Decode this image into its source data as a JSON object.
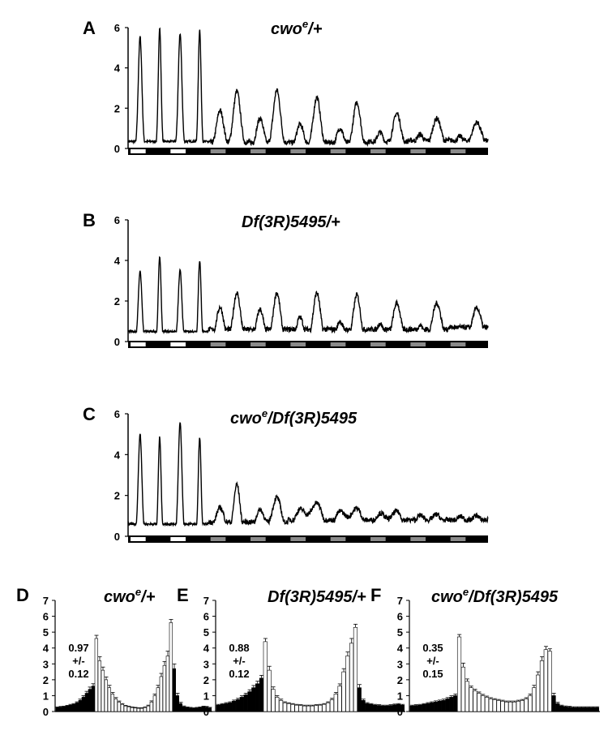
{
  "chart_data": [
    {
      "panel": "A",
      "type": "line",
      "title_main": "cwo",
      "title_sup": "e",
      "title_rest": "/+",
      "ylim": [
        0,
        6
      ],
      "yticks": [
        0,
        2,
        4,
        6
      ],
      "xlim": [
        0,
        9
      ],
      "lightbar": [
        "white",
        "black",
        "white",
        "black",
        "gray",
        "black",
        "gray",
        "black",
        "gray",
        "black",
        "gray",
        "black",
        "gray",
        "black",
        "gray",
        "black",
        "gray",
        "black"
      ],
      "days": [
        {
          "peaks": [
            {
              "t": 0.3,
              "h": 5.55,
              "w": 0.045
            },
            {
              "t": 0.79,
              "h": 6.0,
              "w": 0.035
            }
          ],
          "base": 0.35
        },
        {
          "peaks": [
            {
              "t": 0.3,
              "h": 5.7,
              "w": 0.045
            },
            {
              "t": 0.79,
              "h": 5.9,
              "w": 0.035
            }
          ],
          "base": 0.35
        },
        {
          "peaks": [
            {
              "t": 0.3,
              "h": 1.9,
              "w": 0.09
            },
            {
              "t": 0.72,
              "h": 2.85,
              "w": 0.09
            }
          ],
          "base": 0.3
        },
        {
          "peaks": [
            {
              "t": 0.3,
              "h": 1.5,
              "w": 0.09
            },
            {
              "t": 0.72,
              "h": 2.9,
              "w": 0.09
            }
          ],
          "base": 0.3
        },
        {
          "peaks": [
            {
              "t": 0.3,
              "h": 1.2,
              "w": 0.09
            },
            {
              "t": 0.72,
              "h": 2.55,
              "w": 0.09
            }
          ],
          "base": 0.3
        },
        {
          "peaks": [
            {
              "t": 0.3,
              "h": 1.0,
              "w": 0.09
            },
            {
              "t": 0.72,
              "h": 2.3,
              "w": 0.09
            }
          ],
          "base": 0.3
        },
        {
          "peaks": [
            {
              "t": 0.3,
              "h": 0.8,
              "w": 0.09
            },
            {
              "t": 0.72,
              "h": 1.75,
              "w": 0.1
            }
          ],
          "base": 0.35
        },
        {
          "peaks": [
            {
              "t": 0.3,
              "h": 0.7,
              "w": 0.1
            },
            {
              "t": 0.72,
              "h": 1.5,
              "w": 0.11
            }
          ],
          "base": 0.4
        },
        {
          "peaks": [
            {
              "t": 0.3,
              "h": 0.6,
              "w": 0.1
            },
            {
              "t": 0.72,
              "h": 1.3,
              "w": 0.12
            }
          ],
          "base": 0.4
        }
      ]
    },
    {
      "panel": "B",
      "type": "line",
      "title_main": "Df(3R)5495",
      "title_sup": "",
      "title_rest": "/+",
      "ylim": [
        0,
        6
      ],
      "yticks": [
        0,
        2,
        4,
        6
      ],
      "xlim": [
        0,
        9
      ],
      "lightbar": [
        "white",
        "black",
        "white",
        "black",
        "gray",
        "black",
        "gray",
        "black",
        "gray",
        "black",
        "gray",
        "black",
        "gray",
        "black",
        "gray",
        "black",
        "gray",
        "black"
      ],
      "days": [
        {
          "peaks": [
            {
              "t": 0.3,
              "h": 3.45,
              "w": 0.045
            },
            {
              "t": 0.79,
              "h": 4.2,
              "w": 0.035
            }
          ],
          "base": 0.5
        },
        {
          "peaks": [
            {
              "t": 0.3,
              "h": 3.5,
              "w": 0.045
            },
            {
              "t": 0.79,
              "h": 4.0,
              "w": 0.035
            }
          ],
          "base": 0.5
        },
        {
          "peaks": [
            {
              "t": 0.3,
              "h": 1.7,
              "w": 0.09
            },
            {
              "t": 0.72,
              "h": 2.4,
              "w": 0.09
            }
          ],
          "base": 0.6
        },
        {
          "peaks": [
            {
              "t": 0.3,
              "h": 1.6,
              "w": 0.09
            },
            {
              "t": 0.72,
              "h": 2.4,
              "w": 0.09
            }
          ],
          "base": 0.6
        },
        {
          "peaks": [
            {
              "t": 0.3,
              "h": 1.2,
              "w": 0.09
            },
            {
              "t": 0.72,
              "h": 2.4,
              "w": 0.09
            }
          ],
          "base": 0.6
        },
        {
          "peaks": [
            {
              "t": 0.3,
              "h": 1.0,
              "w": 0.09
            },
            {
              "t": 0.72,
              "h": 2.3,
              "w": 0.09
            }
          ],
          "base": 0.6
        },
        {
          "peaks": [
            {
              "t": 0.3,
              "h": 0.9,
              "w": 0.09
            },
            {
              "t": 0.72,
              "h": 1.9,
              "w": 0.1
            }
          ],
          "base": 0.6
        },
        {
          "peaks": [
            {
              "t": 0.3,
              "h": 0.8,
              "w": 0.1
            },
            {
              "t": 0.72,
              "h": 1.9,
              "w": 0.11
            }
          ],
          "base": 0.6
        },
        {
          "peaks": [
            {
              "t": 0.3,
              "h": 0.7,
              "w": 0.1
            },
            {
              "t": 0.72,
              "h": 1.65,
              "w": 0.12
            }
          ],
          "base": 0.7
        }
      ]
    },
    {
      "panel": "C",
      "type": "line",
      "title_main": "cwo",
      "title_sup": "e",
      "title_rest": "/Df(3R)5495",
      "ylim": [
        0,
        6
      ],
      "yticks": [
        0,
        2,
        4,
        6
      ],
      "xlim": [
        0,
        9
      ],
      "lightbar": [
        "white",
        "black",
        "white",
        "black",
        "gray",
        "black",
        "gray",
        "black",
        "gray",
        "black",
        "gray",
        "black",
        "gray",
        "black",
        "gray",
        "black",
        "gray",
        "black"
      ],
      "days": [
        {
          "peaks": [
            {
              "t": 0.3,
              "h": 5.0,
              "w": 0.045
            },
            {
              "t": 0.79,
              "h": 4.85,
              "w": 0.035
            }
          ],
          "base": 0.6
        },
        {
          "peaks": [
            {
              "t": 0.3,
              "h": 5.55,
              "w": 0.045
            },
            {
              "t": 0.79,
              "h": 4.85,
              "w": 0.035
            }
          ],
          "base": 0.6
        },
        {
          "peaks": [
            {
              "t": 0.3,
              "h": 1.4,
              "w": 0.12
            },
            {
              "t": 0.72,
              "h": 2.55,
              "w": 0.08
            }
          ],
          "base": 0.7
        },
        {
          "peaks": [
            {
              "t": 0.3,
              "h": 1.3,
              "w": 0.12
            },
            {
              "t": 0.72,
              "h": 1.9,
              "w": 0.12
            }
          ],
          "base": 0.7
        },
        {
          "peaks": [
            {
              "t": 0.3,
              "h": 1.3,
              "w": 0.15
            },
            {
              "t": 0.72,
              "h": 1.6,
              "w": 0.15
            }
          ],
          "base": 0.8
        },
        {
          "peaks": [
            {
              "t": 0.3,
              "h": 1.2,
              "w": 0.15
            },
            {
              "t": 0.72,
              "h": 1.35,
              "w": 0.15
            }
          ],
          "base": 0.8
        },
        {
          "peaks": [
            {
              "t": 0.3,
              "h": 1.1,
              "w": 0.15
            },
            {
              "t": 0.72,
              "h": 1.2,
              "w": 0.15
            }
          ],
          "base": 0.8
        },
        {
          "peaks": [
            {
              "t": 0.3,
              "h": 1.0,
              "w": 0.15
            },
            {
              "t": 0.72,
              "h": 1.05,
              "w": 0.15
            }
          ],
          "base": 0.8
        },
        {
          "peaks": [
            {
              "t": 0.3,
              "h": 0.95,
              "w": 0.15
            },
            {
              "t": 0.72,
              "h": 1.0,
              "w": 0.15
            }
          ],
          "base": 0.8
        }
      ]
    },
    {
      "panel": "D",
      "type": "bar",
      "title_main": "cwo",
      "title_sup": "e",
      "title_rest": "/+",
      "ylim": [
        0,
        7
      ],
      "yticks": [
        0,
        1,
        2,
        3,
        4,
        5,
        6,
        7
      ],
      "annotation": [
        "0.97",
        "+/-",
        "0.12"
      ],
      "values": [
        0.25,
        0.28,
        0.3,
        0.35,
        0.4,
        0.45,
        0.55,
        0.7,
        0.9,
        1.15,
        1.4,
        1.6,
        4.6,
        3.2,
        2.6,
        2.0,
        1.5,
        1.1,
        0.8,
        0.6,
        0.45,
        0.35,
        0.3,
        0.25,
        0.22,
        0.2,
        0.2,
        0.25,
        0.35,
        0.6,
        1.0,
        1.5,
        2.2,
        2.9,
        3.5,
        5.6,
        2.7,
        1.0,
        0.5,
        0.3,
        0.25,
        0.22,
        0.2,
        0.22,
        0.25,
        0.3,
        0.28,
        0.22
      ],
      "errors": [
        0.04,
        0.04,
        0.04,
        0.04,
        0.05,
        0.05,
        0.06,
        0.08,
        0.1,
        0.12,
        0.14,
        0.15,
        0.2,
        0.25,
        0.2,
        0.18,
        0.15,
        0.1,
        0.08,
        0.06,
        0.05,
        0.04,
        0.04,
        0.04,
        0.04,
        0.04,
        0.04,
        0.04,
        0.05,
        0.07,
        0.1,
        0.15,
        0.2,
        0.25,
        0.3,
        0.2,
        0.3,
        0.15,
        0.08,
        0.05,
        0.04,
        0.04,
        0.04,
        0.04,
        0.04,
        0.04,
        0.04,
        0.04
      ]
    },
    {
      "panel": "E",
      "type": "bar",
      "title_main": "Df(3R)5495",
      "title_sup": "",
      "title_rest": "/+",
      "ylim": [
        0,
        7
      ],
      "yticks": [
        0,
        1,
        2,
        3,
        4,
        5,
        6,
        7
      ],
      "annotation": [
        "0.88",
        "+/-",
        "0.12"
      ],
      "values": [
        0.4,
        0.45,
        0.5,
        0.55,
        0.65,
        0.75,
        0.9,
        1.05,
        1.25,
        1.5,
        1.75,
        2.1,
        4.4,
        2.6,
        1.4,
        0.9,
        0.7,
        0.55,
        0.5,
        0.45,
        0.4,
        0.38,
        0.35,
        0.35,
        0.35,
        0.38,
        0.4,
        0.45,
        0.55,
        0.75,
        1.1,
        1.6,
        2.5,
        3.5,
        4.3,
        5.3,
        1.5,
        0.7,
        0.5,
        0.45,
        0.4,
        0.38,
        0.35,
        0.35,
        0.38,
        0.42,
        0.45,
        0.4
      ],
      "errors": [
        0.05,
        0.05,
        0.06,
        0.06,
        0.07,
        0.08,
        0.09,
        0.1,
        0.12,
        0.14,
        0.16,
        0.18,
        0.2,
        0.25,
        0.15,
        0.1,
        0.08,
        0.06,
        0.05,
        0.05,
        0.05,
        0.05,
        0.05,
        0.05,
        0.05,
        0.05,
        0.05,
        0.05,
        0.06,
        0.08,
        0.1,
        0.14,
        0.2,
        0.25,
        0.3,
        0.2,
        0.2,
        0.08,
        0.06,
        0.05,
        0.05,
        0.05,
        0.05,
        0.05,
        0.05,
        0.05,
        0.05,
        0.05
      ]
    },
    {
      "panel": "F",
      "type": "bar",
      "title_main": "cwo",
      "title_sup": "e",
      "title_rest": "/Df(3R)5495",
      "ylim": [
        0,
        7
      ],
      "yticks": [
        0,
        1,
        2,
        3,
        4,
        5,
        6,
        7
      ],
      "annotation": [
        "0.35",
        "+/-",
        "0.15"
      ],
      "values": [
        0.35,
        0.38,
        0.4,
        0.45,
        0.5,
        0.55,
        0.6,
        0.65,
        0.7,
        0.8,
        0.9,
        1.0,
        4.7,
        2.8,
        1.9,
        1.5,
        1.3,
        1.15,
        1.0,
        0.9,
        0.8,
        0.75,
        0.7,
        0.65,
        0.6,
        0.6,
        0.6,
        0.65,
        0.7,
        0.8,
        1.0,
        1.5,
        2.3,
        3.2,
        3.9,
        3.8,
        1.0,
        0.5,
        0.35,
        0.3,
        0.28,
        0.25,
        0.25,
        0.25,
        0.25,
        0.25,
        0.25,
        0.25
      ],
      "errors": [
        0.05,
        0.05,
        0.05,
        0.05,
        0.06,
        0.06,
        0.07,
        0.07,
        0.08,
        0.08,
        0.09,
        0.1,
        0.15,
        0.25,
        0.15,
        0.1,
        0.1,
        0.08,
        0.08,
        0.07,
        0.07,
        0.06,
        0.06,
        0.06,
        0.06,
        0.06,
        0.06,
        0.06,
        0.06,
        0.07,
        0.1,
        0.15,
        0.2,
        0.25,
        0.2,
        0.15,
        0.15,
        0.08,
        0.05,
        0.05,
        0.05,
        0.05,
        0.05,
        0.05,
        0.05,
        0.05,
        0.05,
        0.05
      ]
    }
  ]
}
